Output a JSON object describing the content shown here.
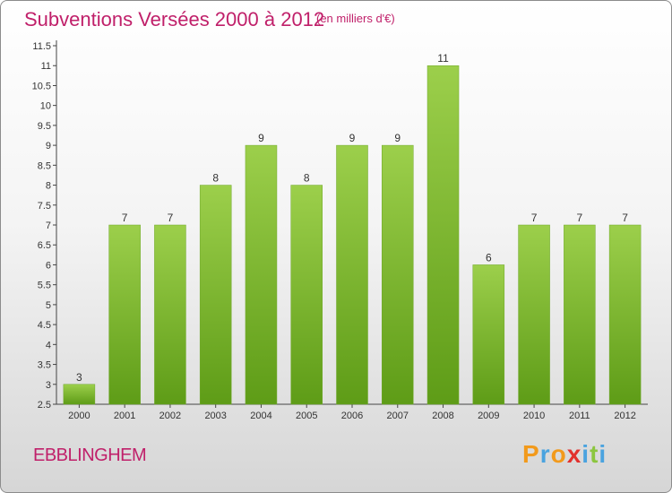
{
  "header": {
    "title": "Subventions Versées 2000 à 2012",
    "subtitle": "(en milliers d'€)"
  },
  "footer": {
    "commune": "EBBLINGHEM",
    "brand_letters": [
      "P",
      "r",
      "o",
      "x",
      "i",
      "t",
      "i"
    ],
    "brand_colors": [
      "#f29a1c",
      "#4aa3df",
      "#f29a1c",
      "#e2312d",
      "#4aa3df",
      "#8cc63f",
      "#4aa3df"
    ]
  },
  "chart_data": {
    "type": "bar",
    "categories": [
      "2000",
      "2001",
      "2002",
      "2003",
      "2004",
      "2005",
      "2006",
      "2007",
      "2008",
      "2009",
      "2010",
      "2011",
      "2012"
    ],
    "values": [
      3,
      7,
      7,
      8,
      9,
      8,
      9,
      9,
      11,
      6,
      7,
      7,
      7
    ],
    "data_labels": [
      "3",
      "7",
      "7",
      "8",
      "9",
      "8",
      "9",
      "9",
      "11",
      "6",
      "7",
      "7",
      "7"
    ],
    "ylim": [
      2.5,
      11.5
    ],
    "yticks": [
      "2.5",
      "3",
      "3.5",
      "4",
      "4.5",
      "5",
      "5.5",
      "6",
      "6.5",
      "7",
      "7.5",
      "8",
      "8.5",
      "9",
      "9.5",
      "10",
      "10.5",
      "11",
      "11.5"
    ],
    "grid": false,
    "colors": {
      "bar_top": "#9ccf4b",
      "bar_bottom": "#5e9c17",
      "axis": "#444444",
      "text": "#333333"
    }
  }
}
